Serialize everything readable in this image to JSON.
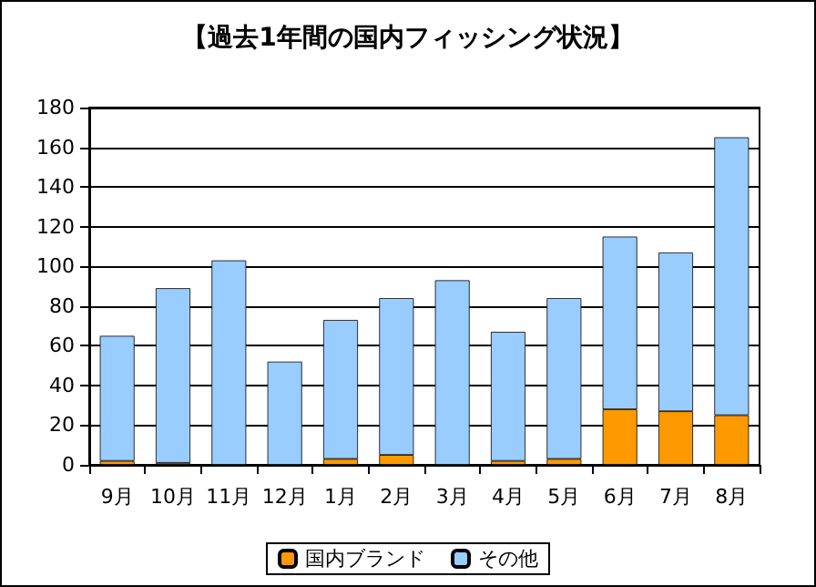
{
  "chart_data": {
    "type": "bar",
    "title": "【過去1年間の国内フィッシング状況】",
    "categories": [
      "9月",
      "10月",
      "11月",
      "12月",
      "1月",
      "2月",
      "3月",
      "4月",
      "5月",
      "6月",
      "7月",
      "8月"
    ],
    "stacked": true,
    "series": [
      {
        "name": "国内ブランド",
        "color": "#ff9900",
        "values": [
          2,
          1,
          0,
          0,
          3,
          5,
          0,
          2,
          3,
          28,
          27,
          25
        ]
      },
      {
        "name": "その他",
        "color": "#99ccff",
        "values": [
          63,
          88,
          103,
          52,
          70,
          79,
          93,
          65,
          81,
          87,
          80,
          140
        ]
      }
    ],
    "ylim": [
      0,
      180
    ],
    "yticks": [
      0,
      20,
      40,
      60,
      80,
      100,
      120,
      140,
      160,
      180
    ],
    "grid": "y",
    "legend": "bottom"
  }
}
